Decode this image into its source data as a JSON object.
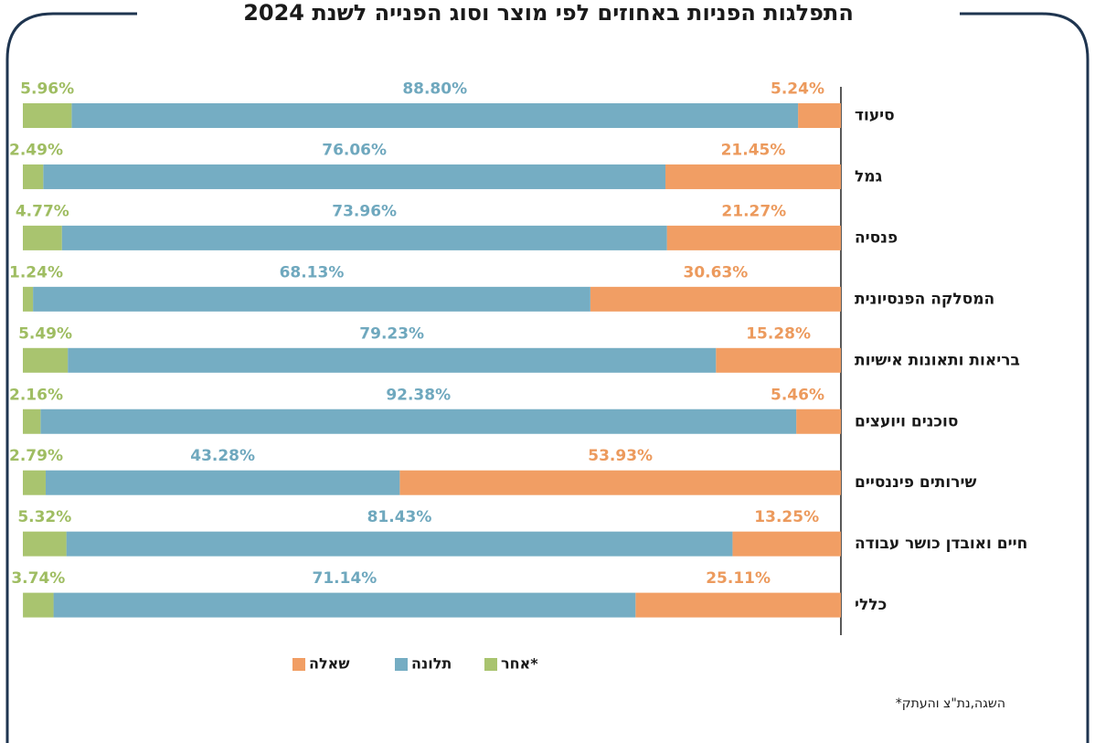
{
  "chart_data": {
    "type": "stacked-bar-horizontal",
    "title": "התפלגות הפניות באחוזים לפי מוצר וסוג הפנייה לשנת 2024",
    "categories": [
      "סיעוד",
      "גמל",
      "פנסיה",
      "המסלקה הפנסיונית",
      "בריאות ותאונות אישיות",
      "סוכנים ויועצים",
      "שירותים פיננסיים",
      "חיים ואובדן כושר עבודה",
      "כללי"
    ],
    "series": [
      {
        "name": "שאלה",
        "color": "#f19e64",
        "label_color": "#ec9a5d",
        "values": [
          5.24,
          21.45,
          21.27,
          30.63,
          15.28,
          5.46,
          53.93,
          13.25,
          25.11
        ],
        "value_labels": [
          "5.24%",
          "21.45%",
          "21.27%",
          "30.63%",
          "15.28%",
          "5.46%",
          "53.93%",
          "13.25%",
          "25.11%"
        ]
      },
      {
        "name": "תלונה",
        "color": "#75adc3",
        "label_color": "#6fa8be",
        "values": [
          88.8,
          76.06,
          73.96,
          68.13,
          79.23,
          92.38,
          43.28,
          81.43,
          71.14
        ],
        "value_labels": [
          "88.80%",
          "76.06%",
          "73.96%",
          "68.13%",
          "79.23%",
          "92.38%",
          "43.28%",
          "81.43%",
          "71.14%"
        ]
      },
      {
        "name": "אחר*",
        "color": "#a9c46f",
        "label_color": "#9fbd62",
        "values": [
          5.96,
          2.49,
          4.77,
          1.24,
          5.49,
          2.16,
          2.79,
          5.32,
          3.74
        ],
        "value_labels": [
          "5.96%",
          "2.49%",
          "4.77%",
          "1.24%",
          "5.49%",
          "2.16%",
          "2.79%",
          "5.32%",
          "3.74%"
        ]
      }
    ],
    "note": "*השגה,נת\"צ והעתק"
  }
}
